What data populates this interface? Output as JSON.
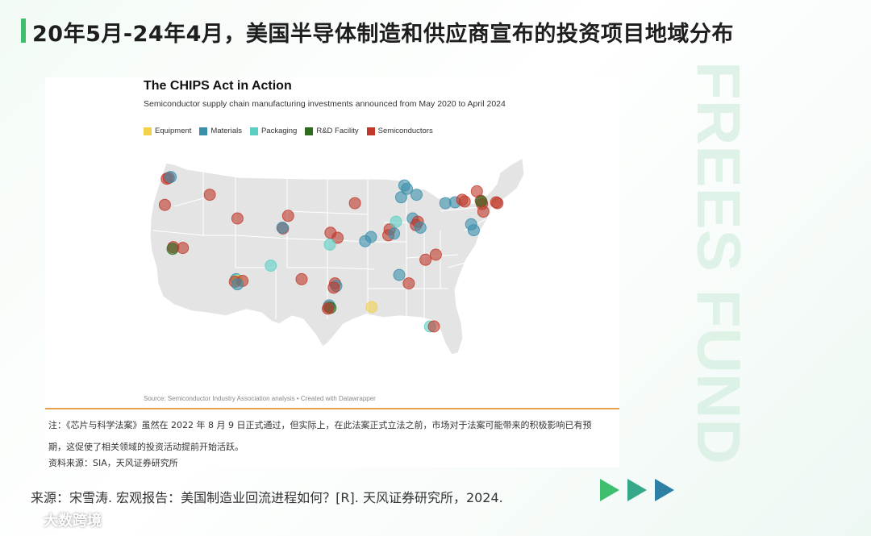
{
  "page_title": "20年5月-24年4月，美国半导体制造和供应商宣布的投资项目地域分布",
  "watermark": "FREES FUND",
  "footer_source": "来源：宋雪涛. 宏观报告：美国制造业回流进程如何？[R]. 天风证券研究所，2024.",
  "note": "注：《芯片与科学法案》虽然在 2022 年 8 月 9 日正式通过，但实际上，在此法案正式立法之前，市场对于法案可能带来的积极影响已有预期，这促使了相关领域的投资活动提前开始活跃。",
  "note_source": "资料来源：SIA，天风证券研究所",
  "brand": "大数跨境",
  "colors": {
    "accent": "#3fbf6e",
    "arrow1": "#3fbf6e",
    "arrow2": "#35a88a",
    "arrow3": "#2d7fa6"
  },
  "chart_data": {
    "type": "scatter",
    "title": "The CHIPS Act in Action",
    "subtitle": "Semiconductor supply chain manufacturing investments announced from May 2020 to April 2024",
    "source": "Source: Semiconductor Industry Association analysis • Created with Datawrapper",
    "legend": [
      {
        "name": "Equipment",
        "color": "#f2d24b"
      },
      {
        "name": "Materials",
        "color": "#3a8fab"
      },
      {
        "name": "Packaging",
        "color": "#5ccfc4"
      },
      {
        "name": "R&D Facility",
        "color": "#2e6b1f"
      },
      {
        "name": "Semiconductors",
        "color": "#c0392b"
      }
    ],
    "points": [
      {
        "category": "Semiconductors",
        "lon": -122.9,
        "lat": 45.5
      },
      {
        "category": "Semiconductors",
        "lon": -122.6,
        "lat": 45.6
      },
      {
        "category": "Materials",
        "lon": -122.3,
        "lat": 45.7
      },
      {
        "category": "Semiconductors",
        "lon": -123.2,
        "lat": 42.4
      },
      {
        "category": "Semiconductors",
        "lon": -116.2,
        "lat": 43.6
      },
      {
        "category": "Semiconductors",
        "lon": -121.9,
        "lat": 37.4
      },
      {
        "category": "R&D Facility",
        "lon": -122.0,
        "lat": 37.2
      },
      {
        "category": "Semiconductors",
        "lon": -120.4,
        "lat": 37.3
      },
      {
        "category": "Semiconductors",
        "lon": -111.9,
        "lat": 40.8
      },
      {
        "category": "Materials",
        "lon": -112.1,
        "lat": 33.6
      },
      {
        "category": "Packaging",
        "lon": -112.0,
        "lat": 33.5
      },
      {
        "category": "Equipment",
        "lon": -111.9,
        "lat": 33.4
      },
      {
        "category": "Semiconductors",
        "lon": -112.3,
        "lat": 33.3
      },
      {
        "category": "Semiconductors",
        "lon": -111.1,
        "lat": 33.4
      },
      {
        "category": "Materials",
        "lon": -111.9,
        "lat": 33.0
      },
      {
        "category": "Packaging",
        "lon": -106.7,
        "lat": 35.2
      },
      {
        "category": "Semiconductors",
        "lon": -104.8,
        "lat": 39.6
      },
      {
        "category": "Materials",
        "lon": -104.9,
        "lat": 39.7
      },
      {
        "category": "Semiconductors",
        "lon": -104.0,
        "lat": 41.1
      },
      {
        "category": "Semiconductors",
        "lon": -101.9,
        "lat": 33.6
      },
      {
        "category": "Semiconductors",
        "lon": -97.7,
        "lat": 30.3
      },
      {
        "category": "Materials",
        "lon": -97.6,
        "lat": 30.5
      },
      {
        "category": "R&D Facility",
        "lon": -97.4,
        "lat": 30.2
      },
      {
        "category": "Semiconductors",
        "lon": -97.8,
        "lat": 30.1
      },
      {
        "category": "Semiconductors",
        "lon": -96.7,
        "lat": 33.1
      },
      {
        "category": "Materials",
        "lon": -96.5,
        "lat": 32.8
      },
      {
        "category": "Semiconductors",
        "lon": -96.9,
        "lat": 32.6
      },
      {
        "category": "Semiconductors",
        "lon": -97.4,
        "lat": 39.1
      },
      {
        "category": "Semiconductors",
        "lon": -96.3,
        "lat": 38.5
      },
      {
        "category": "Packaging",
        "lon": -97.5,
        "lat": 37.7
      },
      {
        "category": "Semiconductors",
        "lon": -93.6,
        "lat": 42.6
      },
      {
        "category": "Materials",
        "lon": -91.1,
        "lat": 38.6
      },
      {
        "category": "Materials",
        "lon": -92.0,
        "lat": 38.1
      },
      {
        "category": "Semiconductors",
        "lon": -88.2,
        "lat": 39.5
      },
      {
        "category": "Semiconductors",
        "lon": -88.4,
        "lat": 38.8
      },
      {
        "category": "Materials",
        "lon": -87.5,
        "lat": 39.0
      },
      {
        "category": "Packaging",
        "lon": -87.2,
        "lat": 40.4
      },
      {
        "category": "Materials",
        "lon": -86.4,
        "lat": 43.3
      },
      {
        "category": "Materials",
        "lon": -85.5,
        "lat": 44.3
      },
      {
        "category": "Materials",
        "lon": -84.0,
        "lat": 43.6
      },
      {
        "category": "Materials",
        "lon": -85.9,
        "lat": 44.7
      },
      {
        "category": "Materials",
        "lon": -84.6,
        "lat": 40.8
      },
      {
        "category": "Semiconductors",
        "lon": -84.1,
        "lat": 40.0
      },
      {
        "category": "Semiconductors",
        "lon": -83.8,
        "lat": 40.4
      },
      {
        "category": "Materials",
        "lon": -83.4,
        "lat": 39.7
      },
      {
        "category": "Materials",
        "lon": -86.7,
        "lat": 34.1
      },
      {
        "category": "Semiconductors",
        "lon": -85.2,
        "lat": 33.1
      },
      {
        "category": "Semiconductors",
        "lon": -82.6,
        "lat": 35.9
      },
      {
        "category": "Semiconductors",
        "lon": -81.0,
        "lat": 36.5
      },
      {
        "category": "Equipment",
        "lon": -91.0,
        "lat": 30.3
      },
      {
        "category": "Packaging",
        "lon": -81.9,
        "lat": 28.0
      },
      {
        "category": "Semiconductors",
        "lon": -81.3,
        "lat": 28.0
      },
      {
        "category": "Materials",
        "lon": -79.5,
        "lat": 42.6
      },
      {
        "category": "Materials",
        "lon": -78.0,
        "lat": 42.7
      },
      {
        "category": "Semiconductors",
        "lon": -76.9,
        "lat": 43.0
      },
      {
        "category": "Semiconductors",
        "lon": -76.5,
        "lat": 42.8
      },
      {
        "category": "Semiconductors",
        "lon": -74.6,
        "lat": 44.0
      },
      {
        "category": "Semiconductors",
        "lon": -74.0,
        "lat": 42.9
      },
      {
        "category": "Semiconductors",
        "lon": -73.8,
        "lat": 42.5
      },
      {
        "category": "R&D Facility",
        "lon": -73.9,
        "lat": 42.8
      },
      {
        "category": "Semiconductors",
        "lon": -73.6,
        "lat": 41.6
      },
      {
        "category": "Materials",
        "lon": -75.5,
        "lat": 40.1
      },
      {
        "category": "Materials",
        "lon": -75.1,
        "lat": 39.4
      },
      {
        "category": "Semiconductors",
        "lon": -71.4,
        "lat": 42.6
      },
      {
        "category": "Semiconductors",
        "lon": -71.6,
        "lat": 42.7
      }
    ]
  }
}
